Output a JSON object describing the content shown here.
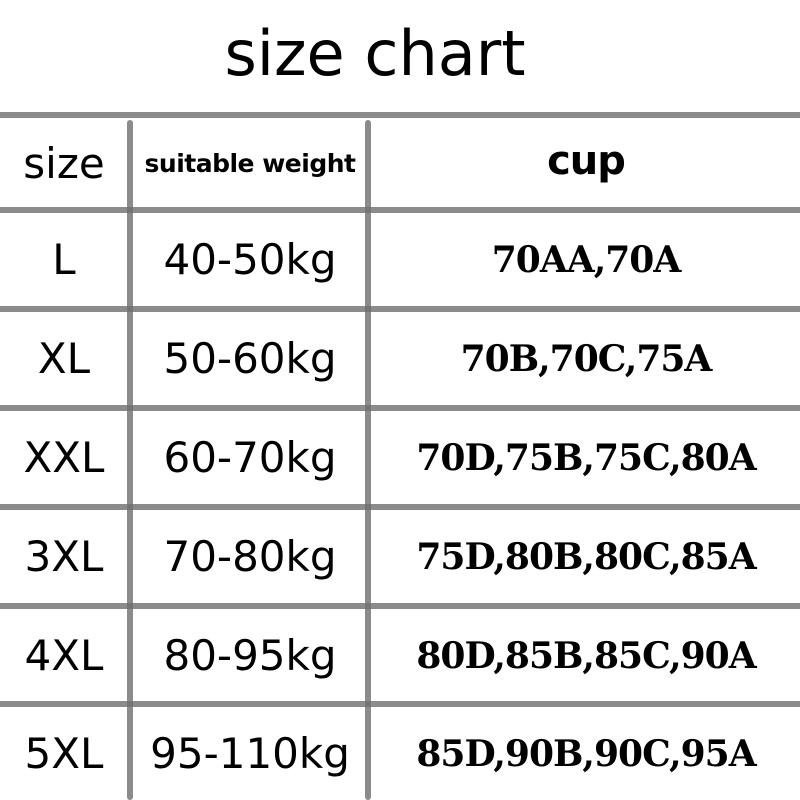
{
  "title": "size chart",
  "headers": {
    "size": "size",
    "weight": "suitable weight",
    "cup": "cup"
  },
  "rows": [
    {
      "size": "L",
      "weight": "40-50kg",
      "cup": "70AA,70A"
    },
    {
      "size": "XL",
      "weight": "50-60kg",
      "cup": "70B,70C,75A"
    },
    {
      "size": "XXL",
      "weight": "60-70kg",
      "cup": "70D,75B,75C,80A"
    },
    {
      "size": "3XL",
      "weight": "70-80kg",
      "cup": "75D,80B,80C,85A"
    },
    {
      "size": "4XL",
      "weight": "80-95kg",
      "cup": "80D,85B,85C,90A"
    },
    {
      "size": "5XL",
      "weight": "95-110kg",
      "cup": "85D,90B,90C,95A"
    }
  ],
  "colors": {
    "grid": "#888888",
    "text": "#000000"
  }
}
